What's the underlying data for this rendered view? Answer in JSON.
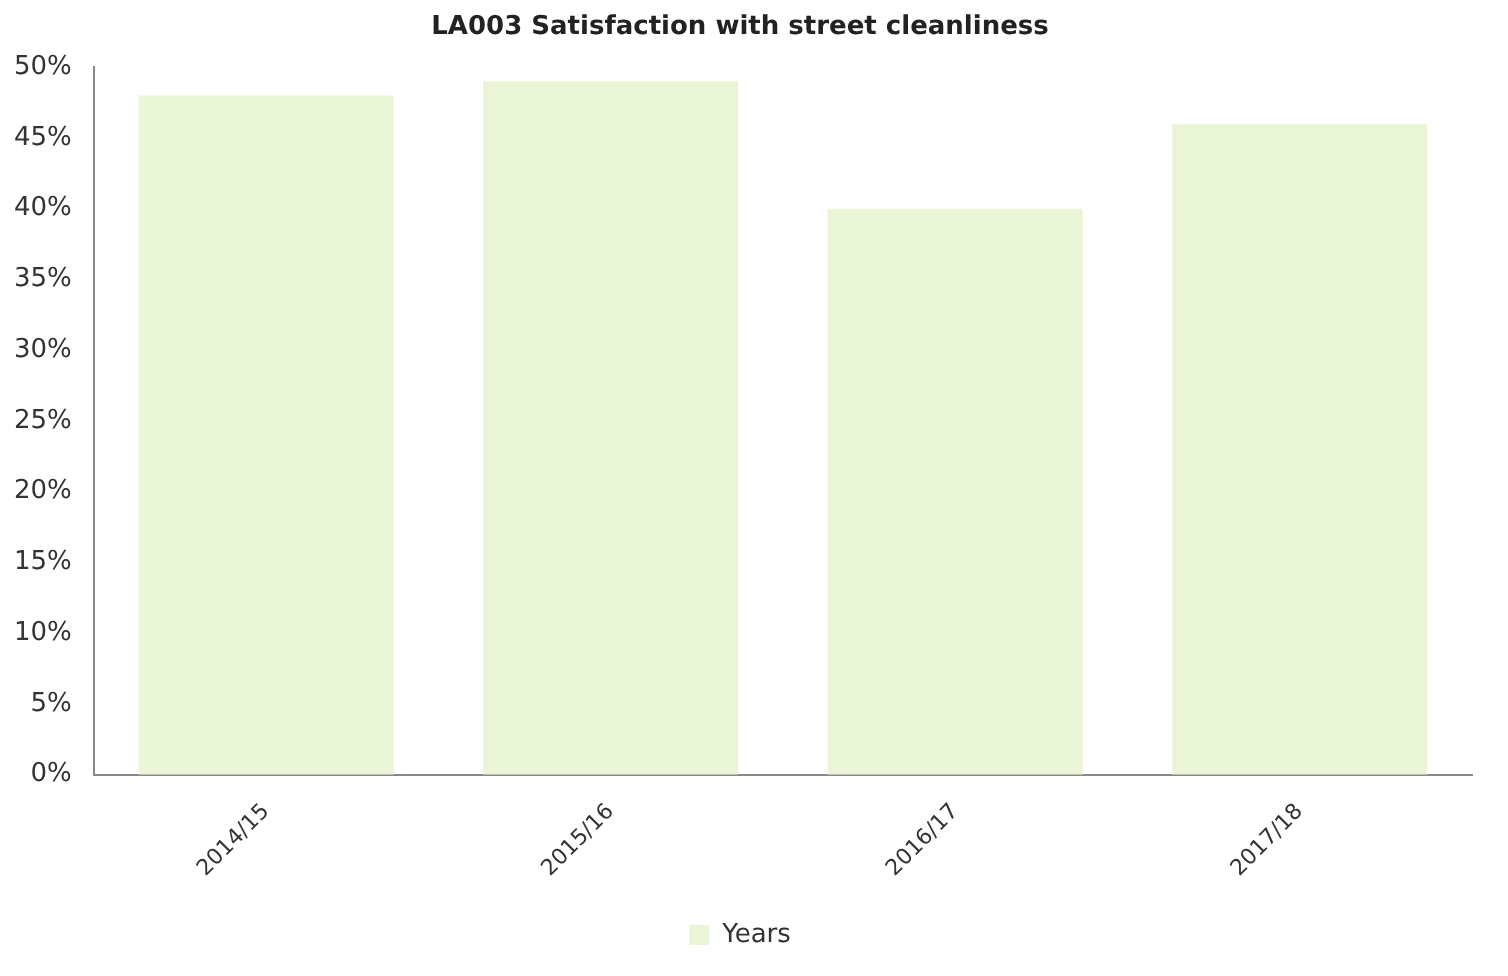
{
  "chart_data": {
    "type": "bar",
    "title": "LA003 Satisfaction with street cleanliness",
    "categories": [
      "2014/15",
      "2015/16",
      "2016/17",
      "2017/18"
    ],
    "series": [
      {
        "name": "Years",
        "color": "#e9f5d6",
        "values": [
          48,
          49,
          40,
          46
        ]
      }
    ],
    "ylim": [
      0,
      50
    ],
    "yticks": [
      {
        "value": 0,
        "label": "0%"
      },
      {
        "value": 5,
        "label": "5%"
      },
      {
        "value": 10,
        "label": "10%"
      },
      {
        "value": 15,
        "label": "15%"
      },
      {
        "value": 20,
        "label": "20%"
      },
      {
        "value": 25,
        "label": "25%"
      },
      {
        "value": 30,
        "label": "30%"
      },
      {
        "value": 35,
        "label": "35%"
      },
      {
        "value": 40,
        "label": "40%"
      },
      {
        "value": 45,
        "label": "45%"
      },
      {
        "value": 50,
        "label": "50%"
      }
    ],
    "grid": false,
    "legend": "bottom"
  }
}
